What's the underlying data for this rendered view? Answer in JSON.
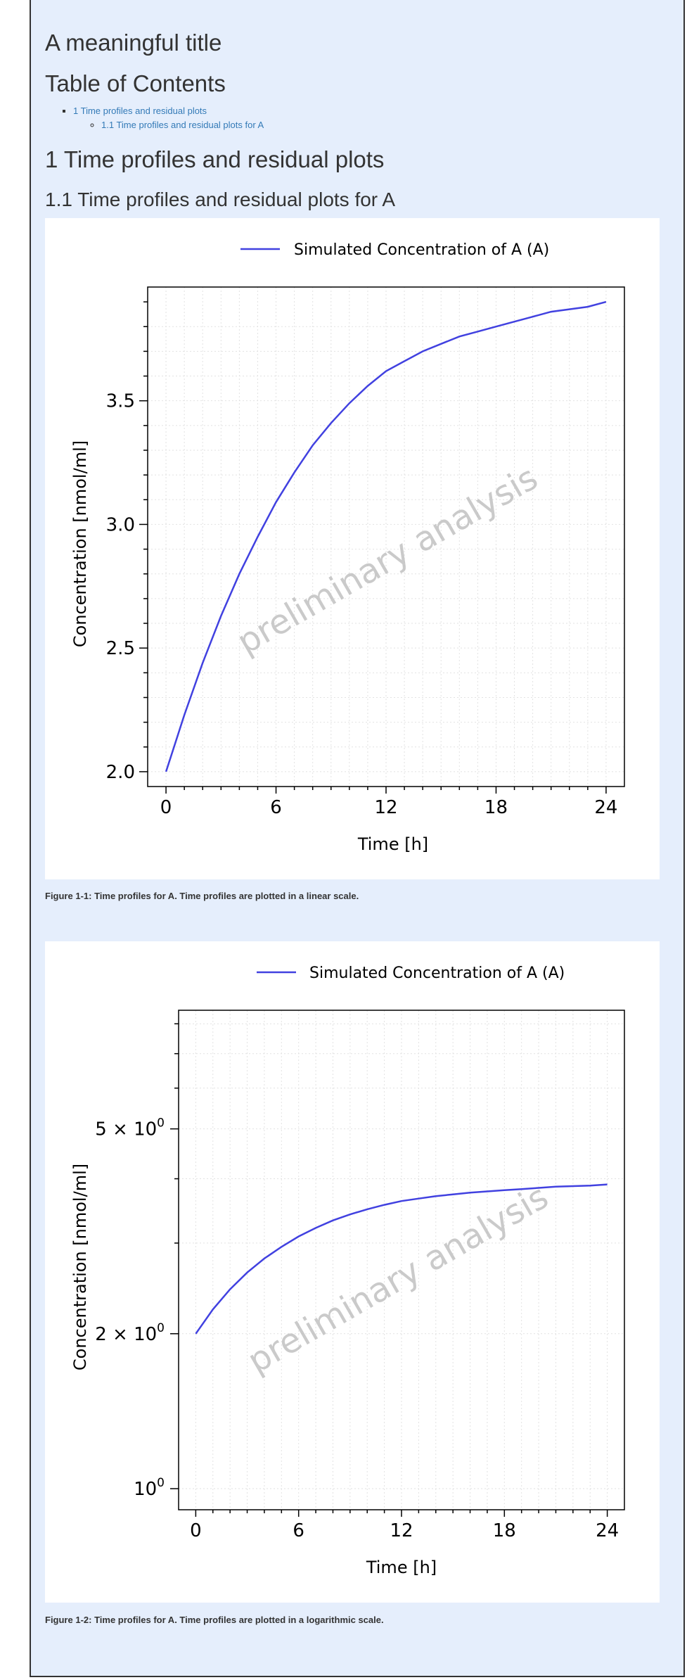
{
  "document": {
    "title": "A meaningful title",
    "toc_heading": "Table of Contents",
    "toc": {
      "item1": "1 Time profiles and residual plots",
      "item1_1": "1.1 Time profiles and residual plots for A"
    },
    "section_title": "1 Time profiles and residual plots",
    "subsection_title": "1.1 Time profiles and residual plots for A",
    "watermark": "preliminary analysis"
  },
  "figures": [
    {
      "caption": "Figure 1-1: Time profiles for A. Time profiles are plotted in a linear scale."
    },
    {
      "caption": "Figure 1-2: Time profiles for A. Time profiles are plotted in a logarithmic scale."
    }
  ],
  "chart_data": [
    {
      "type": "line",
      "scale": "linear",
      "xlabel": "Time [h]",
      "ylabel": "Concentration [nmol/ml]",
      "xlim": [
        -1,
        25
      ],
      "ylim": [
        1.94,
        3.96
      ],
      "xticks": [
        "0",
        "6",
        "12",
        "18",
        "24"
      ],
      "yticks": [
        "2.0",
        "2.5",
        "3.0",
        "3.5"
      ],
      "legend_position": "top",
      "grid": true,
      "series": [
        {
          "name": "Simulated Concentration of A (A)",
          "color": "#4141e0",
          "x": [
            0,
            1,
            2,
            3,
            4,
            5,
            6,
            7,
            8,
            9,
            10,
            11,
            12,
            13,
            14,
            15,
            16,
            17,
            18,
            19,
            20,
            21,
            22,
            23,
            24
          ],
          "y": [
            2.0,
            2.23,
            2.44,
            2.63,
            2.8,
            2.95,
            3.09,
            3.21,
            3.32,
            3.41,
            3.49,
            3.56,
            3.62,
            3.66,
            3.7,
            3.73,
            3.76,
            3.78,
            3.8,
            3.82,
            3.84,
            3.86,
            3.87,
            3.88,
            3.9
          ]
        }
      ]
    },
    {
      "type": "line",
      "scale": "log",
      "xlabel": "Time [h]",
      "ylabel": "Concentration [nmol/ml]",
      "xlim": [
        -1,
        25
      ],
      "ylim": [
        0.91,
        8.5
      ],
      "xticks": [
        "0",
        "6",
        "12",
        "18",
        "24"
      ],
      "yticks": [
        {
          "value": 1,
          "mantissa": "",
          "exp": "0"
        },
        {
          "value": 2,
          "mantissa": "2 × ",
          "exp": "0"
        },
        {
          "value": 5,
          "mantissa": "5 × ",
          "exp": "0"
        }
      ],
      "legend_position": "top",
      "grid": true,
      "series": [
        {
          "name": "Simulated Concentration of A (A)",
          "color": "#4141e0",
          "x": [
            0,
            1,
            2,
            3,
            4,
            5,
            6,
            7,
            8,
            9,
            10,
            11,
            12,
            13,
            14,
            15,
            16,
            17,
            18,
            19,
            20,
            21,
            22,
            23,
            24
          ],
          "y": [
            2.0,
            2.23,
            2.44,
            2.63,
            2.8,
            2.95,
            3.09,
            3.21,
            3.32,
            3.41,
            3.49,
            3.56,
            3.62,
            3.66,
            3.7,
            3.73,
            3.76,
            3.78,
            3.8,
            3.82,
            3.84,
            3.86,
            3.87,
            3.88,
            3.9
          ]
        }
      ]
    }
  ]
}
